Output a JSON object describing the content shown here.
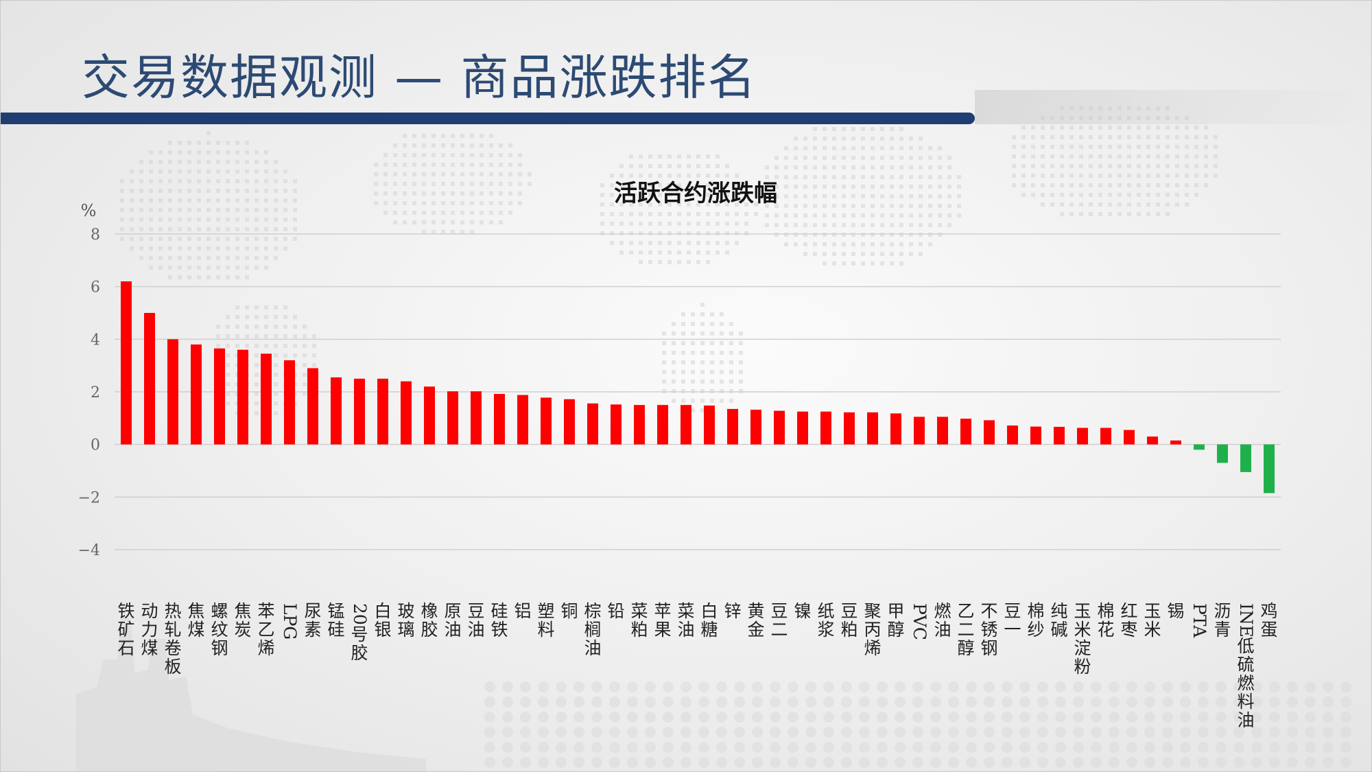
{
  "page": {
    "title": "交易数据观测 — 商品涨跌排名"
  },
  "colors": {
    "title": "#2c4a73",
    "title_bar": "#1f3f72",
    "positive": "#ff0000",
    "negative": "#1fb04b",
    "grid": "#cfcfcf",
    "axis_text": "#666666"
  },
  "chart_data": {
    "type": "bar",
    "title": "活跃合约涨跌幅",
    "ylabel": "%",
    "xlabel": "",
    "ylim": [
      -4,
      8
    ],
    "yticks": [
      8,
      6,
      4,
      2,
      0,
      -2,
      -4
    ],
    "ytick_labels": [
      "8",
      "6",
      "4",
      "2",
      "0",
      "−2",
      "−4"
    ],
    "grid": true,
    "legend": "none",
    "categories": [
      "铁矿石",
      "动力煤",
      "热轧卷板",
      "焦煤",
      "螺纹钢",
      "焦炭",
      "苯乙烯",
      "LPG",
      "尿素",
      "锰硅",
      "20号胶",
      "白银",
      "玻璃",
      "橡胶",
      "原油",
      "豆油",
      "硅铁",
      "铝",
      "塑料",
      "铜",
      "棕榈油",
      "铅",
      "菜粕",
      "苹果",
      "菜油",
      "白糖",
      "锌",
      "黄金",
      "豆二",
      "镍",
      "纸浆",
      "豆粕",
      "聚丙烯",
      "甲醇",
      "PVC",
      "燃油",
      "乙二醇",
      "不锈钢",
      "豆一",
      "棉纱",
      "纯碱",
      "玉米淀粉",
      "棉花",
      "红枣",
      "玉米",
      "锡",
      "PTA",
      "沥青",
      "INE低硫燃料油",
      "鸡蛋"
    ],
    "values": [
      6.2,
      5.0,
      4.0,
      3.8,
      3.65,
      3.6,
      3.45,
      3.2,
      2.9,
      2.55,
      2.5,
      2.5,
      2.4,
      2.2,
      2.02,
      2.02,
      1.92,
      1.88,
      1.78,
      1.72,
      1.56,
      1.52,
      1.5,
      1.5,
      1.5,
      1.48,
      1.35,
      1.32,
      1.28,
      1.25,
      1.25,
      1.22,
      1.22,
      1.18,
      1.05,
      1.05,
      0.98,
      0.92,
      0.72,
      0.68,
      0.67,
      0.63,
      0.63,
      0.55,
      0.3,
      0.15,
      -0.2,
      -0.7,
      -1.05,
      -1.85
    ]
  }
}
